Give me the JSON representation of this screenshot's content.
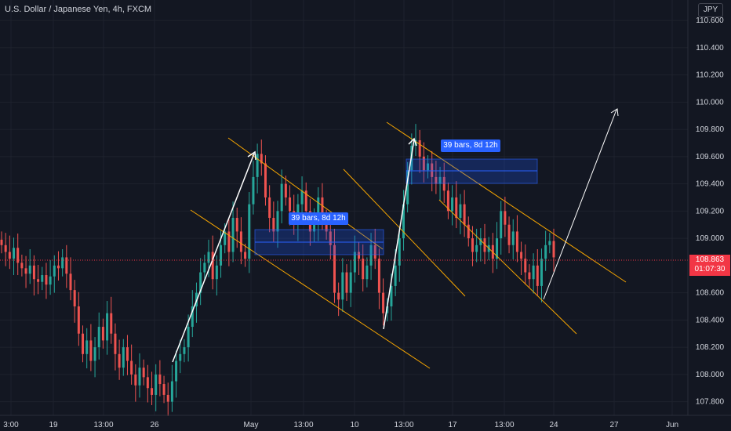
{
  "header": {
    "title": "U.S. Dollar / Japanese Yen, 4h, FXCM",
    "currency": "JPY"
  },
  "price": {
    "current": "108.863",
    "countdown": "01:07:30"
  },
  "colors": {
    "bg": "#131722",
    "grid": "#1e222d",
    "up": "#26a69a",
    "down": "#ef5350",
    "channel": "#f7a600",
    "range_box": "#1e53e5",
    "label_bg": "#2962ff",
    "arrow": "#ffffff",
    "price_tag": "#f23645"
  },
  "chart_data": {
    "type": "candlestick",
    "ylim": [
      107.7,
      110.75
    ],
    "yticks": [
      "110.600",
      "110.400",
      "110.200",
      "110.000",
      "109.800",
      "109.600",
      "109.400",
      "109.200",
      "109.000",
      "108.600",
      "108.400",
      "108.200",
      "108.000",
      "107.800"
    ],
    "xticks": [
      "3:00",
      "19",
      "13:00",
      "26",
      "May",
      "13:00",
      "10",
      "13:00",
      "17",
      "13:00",
      "24",
      "27",
      "Jun"
    ],
    "grid": true,
    "closes": [
      108.95,
      108.9,
      108.85,
      108.93,
      108.82,
      108.78,
      108.74,
      108.8,
      108.7,
      108.68,
      108.73,
      108.66,
      108.72,
      108.8,
      108.78,
      108.86,
      108.74,
      108.62,
      108.5,
      108.3,
      108.15,
      108.25,
      108.1,
      108.2,
      108.35,
      108.25,
      108.45,
      108.3,
      108.15,
      108.05,
      108.2,
      108.1,
      108.0,
      107.92,
      108.05,
      107.98,
      107.9,
      107.85,
      108.0,
      107.93,
      107.85,
      107.8,
      107.95,
      108.1,
      108.15,
      108.2,
      108.35,
      108.5,
      108.6,
      108.75,
      108.82,
      108.9,
      108.7,
      108.8,
      108.95,
      109.05,
      108.9,
      109.15,
      109.05,
      108.9,
      108.85,
      109.25,
      109.45,
      109.62,
      109.55,
      109.3,
      109.15,
      109.05,
      109.2,
      109.4,
      109.3,
      109.2,
      109.1,
      109.25,
      109.35,
      109.2,
      109.05,
      109.1,
      109.3,
      109.15,
      109.05,
      108.95,
      108.6,
      108.55,
      108.75,
      108.6,
      108.75,
      108.9,
      108.85,
      108.7,
      108.8,
      108.95,
      108.85,
      108.6,
      108.45,
      108.5,
      108.65,
      108.8,
      109.0,
      109.25,
      109.5,
      109.68,
      109.72,
      109.6,
      109.5,
      109.55,
      109.45,
      109.4,
      109.45,
      109.35,
      109.2,
      109.3,
      109.15,
      109.25,
      109.1,
      109.0,
      108.9,
      108.95,
      109.0,
      108.9,
      108.95,
      108.85,
      109.0,
      109.2,
      109.1,
      108.95,
      109.05,
      108.9,
      108.85,
      108.75,
      108.7,
      108.8,
      108.65,
      108.85,
      108.95,
      108.98,
      108.86
    ],
    "annotations": [
      {
        "type": "label",
        "text": "39 bars, 8d 12h"
      },
      {
        "type": "label",
        "text": "39 bars, 8d 12h"
      }
    ]
  }
}
